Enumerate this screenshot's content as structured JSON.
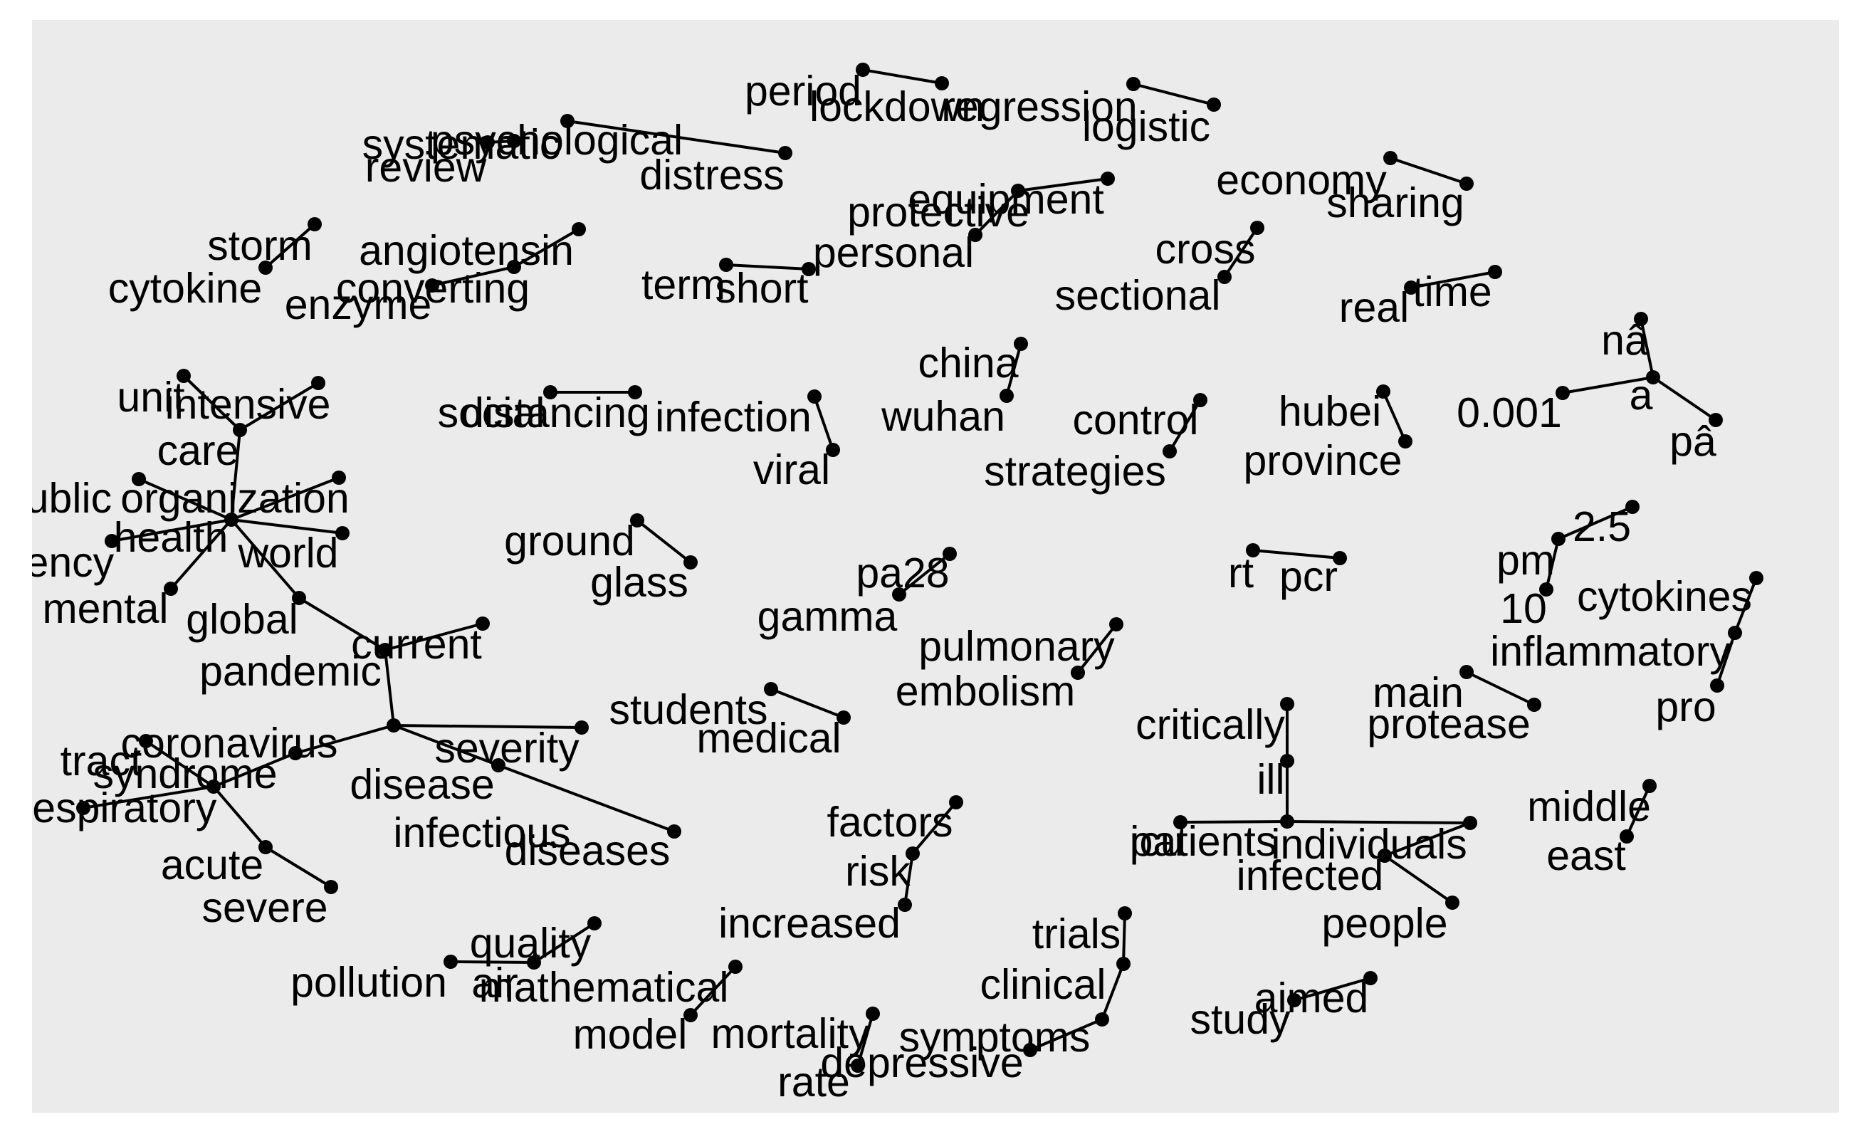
{
  "panel": {
    "background": "#ebebeb",
    "ink": "#000000"
  },
  "words": [
    {
      "id": "period",
      "label": "period"
    },
    {
      "id": "lockdown",
      "label": "lockdown"
    },
    {
      "id": "regression",
      "label": "regression"
    },
    {
      "id": "logistic",
      "label": "logistic"
    },
    {
      "id": "systematic",
      "label": "systematic"
    },
    {
      "id": "review",
      "label": "review"
    },
    {
      "id": "psychological",
      "label": "psychological"
    },
    {
      "id": "distress",
      "label": "distress"
    },
    {
      "id": "economy",
      "label": "economy"
    },
    {
      "id": "sharing",
      "label": "sharing"
    },
    {
      "id": "equipment",
      "label": "equipment"
    },
    {
      "id": "protective",
      "label": "protective"
    },
    {
      "id": "personal",
      "label": "personal"
    },
    {
      "id": "storm",
      "label": "storm"
    },
    {
      "id": "cytokine",
      "label": "cytokine"
    },
    {
      "id": "angiotensin",
      "label": "angiotensin"
    },
    {
      "id": "converting",
      "label": "converting"
    },
    {
      "id": "enzyme",
      "label": "enzyme"
    },
    {
      "id": "term",
      "label": "term"
    },
    {
      "id": "short",
      "label": "short"
    },
    {
      "id": "cross",
      "label": "cross"
    },
    {
      "id": "sectional",
      "label": "sectional"
    },
    {
      "id": "real",
      "label": "real"
    },
    {
      "id": "time",
      "label": "time"
    },
    {
      "id": "na",
      "label": "nâ"
    },
    {
      "id": "a",
      "label": "a"
    },
    {
      "id": "pa",
      "label": "pâ"
    },
    {
      "id": "p001",
      "label": "0.001"
    },
    {
      "id": "unit",
      "label": "unit"
    },
    {
      "id": "intensive",
      "label": "intensive"
    },
    {
      "id": "care",
      "label": "care"
    },
    {
      "id": "public",
      "label": "public"
    },
    {
      "id": "organization",
      "label": "organization"
    },
    {
      "id": "health",
      "label": "health"
    },
    {
      "id": "world",
      "label": "world"
    },
    {
      "id": "agency",
      "label": "agency"
    },
    {
      "id": "mental",
      "label": "mental"
    },
    {
      "id": "global",
      "label": "global"
    },
    {
      "id": "pandemic",
      "label": "pandemic"
    },
    {
      "id": "current",
      "label": "current"
    },
    {
      "id": "social",
      "label": "social"
    },
    {
      "id": "distancing",
      "label": "distancing"
    },
    {
      "id": "infection",
      "label": "infection"
    },
    {
      "id": "viral",
      "label": "viral"
    },
    {
      "id": "china",
      "label": "china"
    },
    {
      "id": "wuhan",
      "label": "wuhan"
    },
    {
      "id": "control",
      "label": "control"
    },
    {
      "id": "strategies",
      "label": "strategies"
    },
    {
      "id": "hubei",
      "label": "hubei"
    },
    {
      "id": "province",
      "label": "province"
    },
    {
      "id": "ground",
      "label": "ground"
    },
    {
      "id": "glass",
      "label": "glass"
    },
    {
      "id": "pa28",
      "label": "pa28"
    },
    {
      "id": "gamma",
      "label": "gamma"
    },
    {
      "id": "rt",
      "label": "rt"
    },
    {
      "id": "pcr",
      "label": "pcr"
    },
    {
      "id": "pm",
      "label": "pm"
    },
    {
      "id": "v25",
      "label": "2.5"
    },
    {
      "id": "v10",
      "label": "10"
    },
    {
      "id": "cytokines",
      "label": "cytokines"
    },
    {
      "id": "inflammatory",
      "label": "inflammatory"
    },
    {
      "id": "pro",
      "label": "pro"
    },
    {
      "id": "pulmonary",
      "label": "pulmonary"
    },
    {
      "id": "embolism",
      "label": "embolism"
    },
    {
      "id": "main",
      "label": "main"
    },
    {
      "id": "protease",
      "label": "protease"
    },
    {
      "id": "students",
      "label": "students"
    },
    {
      "id": "medical",
      "label": "medical"
    },
    {
      "id": "critically",
      "label": "critically"
    },
    {
      "id": "ill",
      "label": "ill"
    },
    {
      "id": "tract",
      "label": "tract"
    },
    {
      "id": "coronavirus",
      "label": "coronavirus"
    },
    {
      "id": "syndrome",
      "label": "syndrome"
    },
    {
      "id": "respiratory",
      "label": "respiratory"
    },
    {
      "id": "severity",
      "label": "severity"
    },
    {
      "id": "disease",
      "label": "disease"
    },
    {
      "id": "infectious",
      "label": "infectious"
    },
    {
      "id": "diseases",
      "label": "diseases"
    },
    {
      "id": "acute",
      "label": "acute"
    },
    {
      "id": "severe",
      "label": "severe"
    },
    {
      "id": "middle",
      "label": "middle"
    },
    {
      "id": "east",
      "label": "east"
    },
    {
      "id": "factors",
      "label": "factors"
    },
    {
      "id": "risk",
      "label": "risk"
    },
    {
      "id": "increased",
      "label": "increased"
    },
    {
      "id": "patients",
      "label": "patients"
    },
    {
      "id": "icu",
      "label": "icu"
    },
    {
      "id": "individuals",
      "label": "individuals"
    },
    {
      "id": "infected",
      "label": "infected"
    },
    {
      "id": "people",
      "label": "people"
    },
    {
      "id": "trials",
      "label": "trials"
    },
    {
      "id": "clinical",
      "label": "clinical"
    },
    {
      "id": "symptoms",
      "label": "symptoms"
    },
    {
      "id": "depressive",
      "label": "depressive"
    },
    {
      "id": "pollution",
      "label": "pollution"
    },
    {
      "id": "air",
      "label": "air"
    },
    {
      "id": "quality",
      "label": "quality"
    },
    {
      "id": "mathematical",
      "label": "mathematical"
    },
    {
      "id": "model",
      "label": "model"
    },
    {
      "id": "mortality",
      "label": "mortality"
    },
    {
      "id": "rate",
      "label": "rate"
    },
    {
      "id": "aimed",
      "label": "aimed"
    },
    {
      "id": "study",
      "label": "study"
    }
  ],
  "edges": [
    [
      "period",
      "lockdown"
    ],
    [
      "regression",
      "logistic"
    ],
    [
      "systematic",
      "review"
    ],
    [
      "psychological",
      "distress"
    ],
    [
      "economy",
      "sharing"
    ],
    [
      "protective",
      "equipment"
    ],
    [
      "personal",
      "protective"
    ],
    [
      "cytokine",
      "storm"
    ],
    [
      "converting",
      "enzyme"
    ],
    [
      "angiotensin",
      "converting"
    ],
    [
      "short",
      "term"
    ],
    [
      "cross",
      "sectional"
    ],
    [
      "real",
      "time"
    ],
    [
      "a",
      "na"
    ],
    [
      "a",
      "pa"
    ],
    [
      "a",
      "p001"
    ],
    [
      "care",
      "intensive"
    ],
    [
      "care",
      "unit"
    ],
    [
      "health",
      "care"
    ],
    [
      "health",
      "public"
    ],
    [
      "health",
      "organization"
    ],
    [
      "health",
      "world"
    ],
    [
      "health",
      "agency"
    ],
    [
      "health",
      "mental"
    ],
    [
      "health",
      "global"
    ],
    [
      "global",
      "pandemic"
    ],
    [
      "pandemic",
      "current"
    ],
    [
      "pandemic",
      "disease"
    ],
    [
      "social",
      "distancing"
    ],
    [
      "viral",
      "infection"
    ],
    [
      "wuhan",
      "china"
    ],
    [
      "control",
      "strategies"
    ],
    [
      "hubei",
      "province"
    ],
    [
      "ground",
      "glass"
    ],
    [
      "pa28",
      "gamma"
    ],
    [
      "rt",
      "pcr"
    ],
    [
      "pm",
      "v25"
    ],
    [
      "pm",
      "v10"
    ],
    [
      "inflammatory",
      "cytokines"
    ],
    [
      "inflammatory",
      "pro"
    ],
    [
      "pulmonary",
      "embolism"
    ],
    [
      "main",
      "protease"
    ],
    [
      "students",
      "medical"
    ],
    [
      "critically",
      "ill"
    ],
    [
      "disease",
      "coronavirus"
    ],
    [
      "coronavirus",
      "syndrome"
    ],
    [
      "syndrome",
      "tract"
    ],
    [
      "syndrome",
      "respiratory"
    ],
    [
      "syndrome",
      "acute"
    ],
    [
      "acute",
      "severe"
    ],
    [
      "disease",
      "severity"
    ],
    [
      "disease",
      "infectious"
    ],
    [
      "infectious",
      "diseases"
    ],
    [
      "middle",
      "east"
    ],
    [
      "risk",
      "factors"
    ],
    [
      "increased",
      "risk"
    ],
    [
      "ill",
      "patients"
    ],
    [
      "patients",
      "icu"
    ],
    [
      "patients",
      "individuals"
    ],
    [
      "individuals",
      "infected"
    ],
    [
      "infected",
      "people"
    ],
    [
      "clinical",
      "trials"
    ],
    [
      "symptoms",
      "clinical"
    ],
    [
      "depressive",
      "symptoms"
    ],
    [
      "air",
      "pollution"
    ],
    [
      "air",
      "quality"
    ],
    [
      "mathematical",
      "model"
    ],
    [
      "mortality",
      "rate"
    ],
    [
      "study",
      "aimed"
    ]
  ]
}
